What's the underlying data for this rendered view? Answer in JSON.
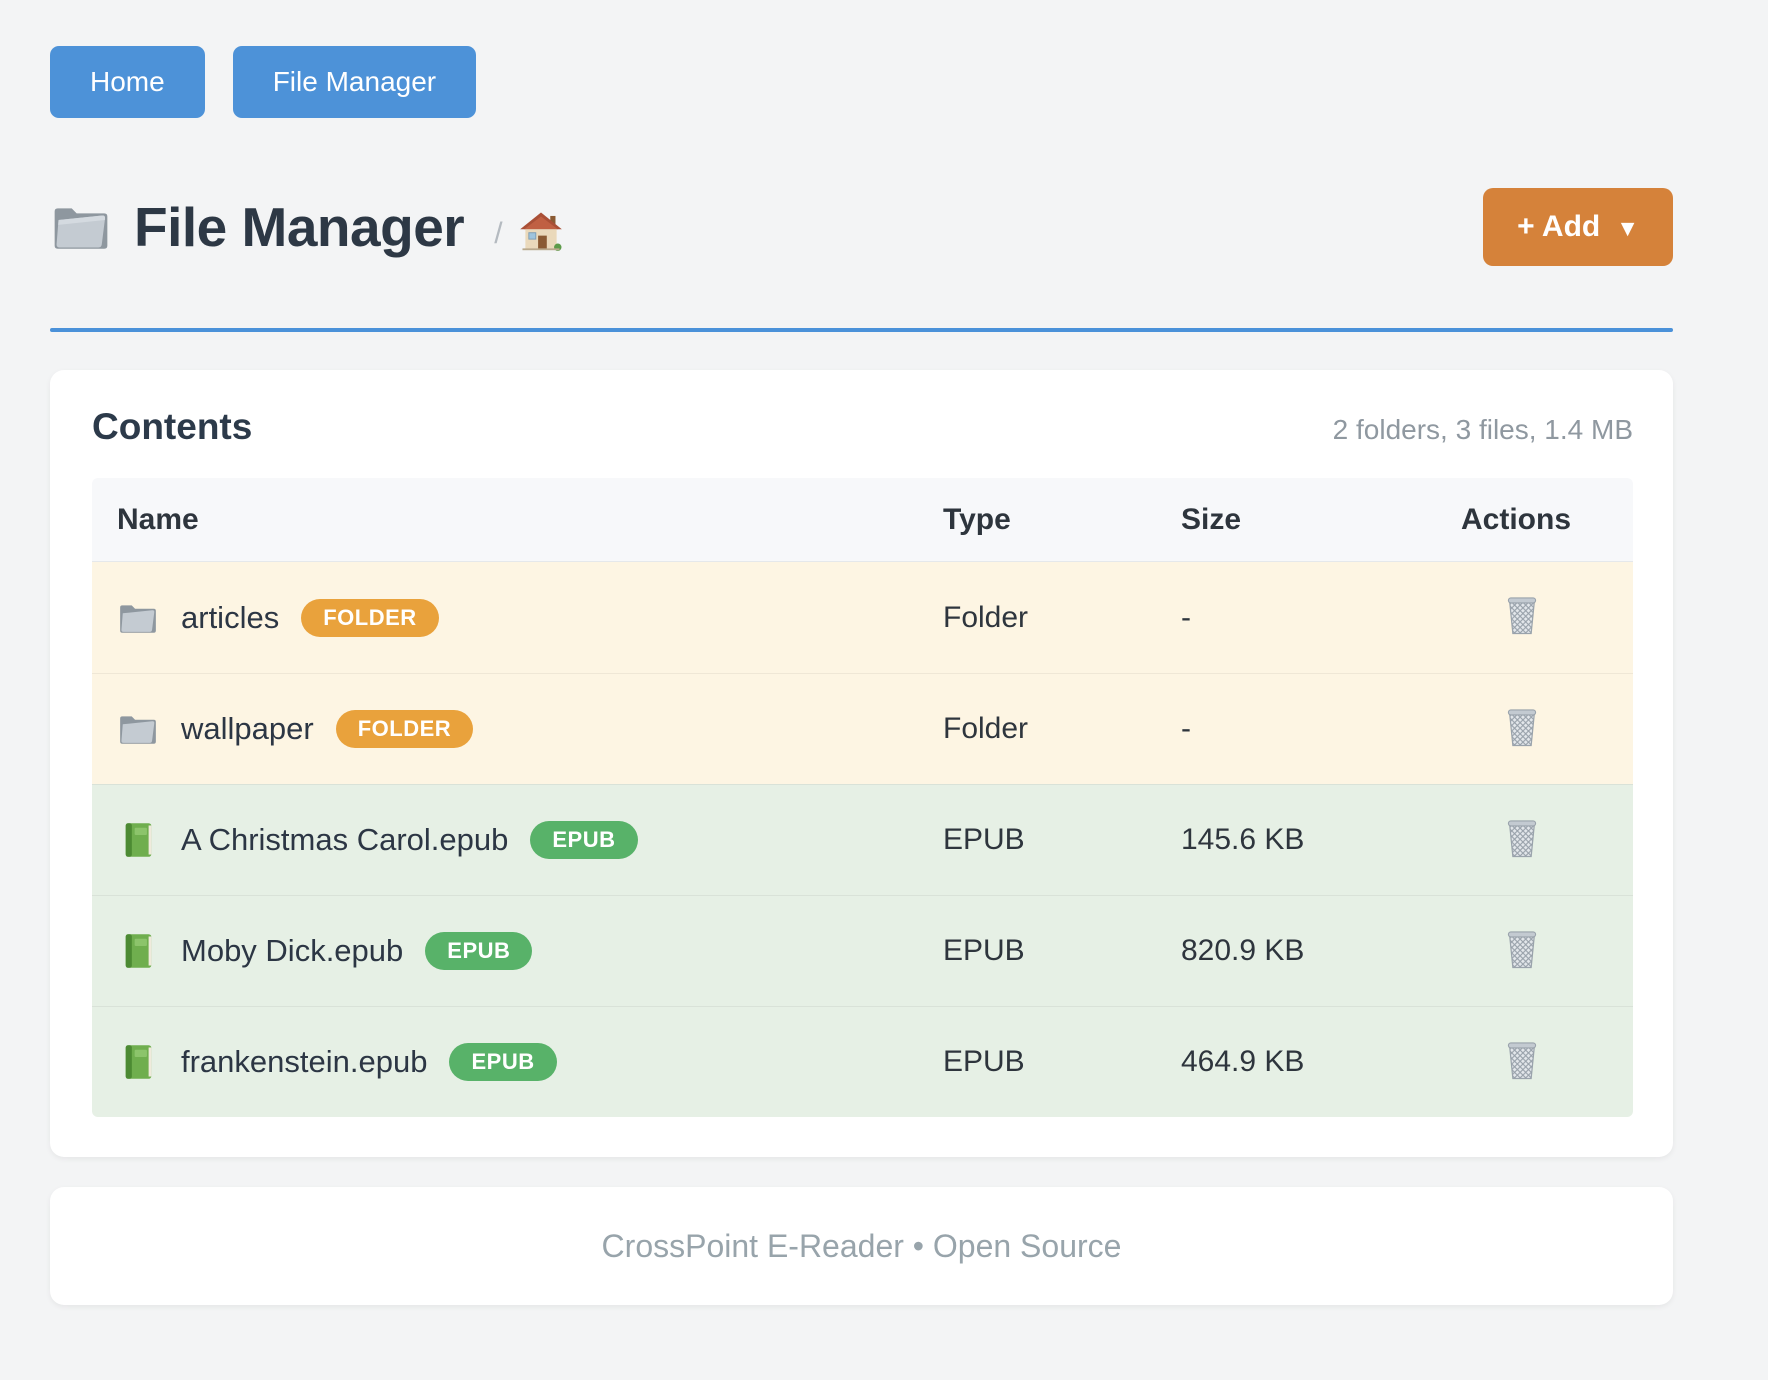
{
  "nav": {
    "buttons": [
      {
        "label": "Home"
      },
      {
        "label": "File Manager"
      }
    ]
  },
  "header": {
    "title": "File Manager",
    "breadcrumb_separator": "/",
    "add_button_label": "+ Add",
    "add_button_caret": "▼"
  },
  "contents": {
    "heading": "Contents",
    "summary": "2 folders, 3 files, 1.4 MB",
    "columns": [
      "Name",
      "Type",
      "Size",
      "Actions"
    ],
    "rows": [
      {
        "name": "articles",
        "badge": "FOLDER",
        "kind": "folder",
        "type": "Folder",
        "size": "-"
      },
      {
        "name": "wallpaper",
        "badge": "FOLDER",
        "kind": "folder",
        "type": "Folder",
        "size": "-"
      },
      {
        "name": "A Christmas Carol.epub",
        "badge": "EPUB",
        "kind": "epub",
        "type": "EPUB",
        "size": "145.6 KB"
      },
      {
        "name": "Moby Dick.epub",
        "badge": "EPUB",
        "kind": "epub",
        "type": "EPUB",
        "size": "820.9 KB"
      },
      {
        "name": "frankenstein.epub",
        "badge": "EPUB",
        "kind": "epub",
        "type": "EPUB",
        "size": "464.9 KB"
      }
    ]
  },
  "footer": {
    "text": "CrossPoint E-Reader • Open Source"
  },
  "colors": {
    "nav_button": "#4d92d8",
    "add_button": "#d5823a",
    "rule": "#4a91d9",
    "badge_folder": "#e9a23c",
    "badge_epub": "#58b269",
    "row_folder_bg": "#fdf5e3",
    "row_epub_bg": "#e6f0e5"
  }
}
